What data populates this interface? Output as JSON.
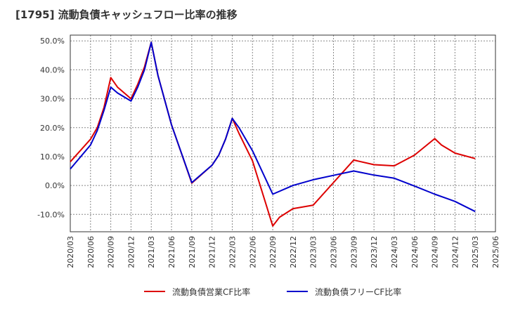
{
  "chart_data": {
    "type": "line",
    "title": "[1795]  流動負債キャッシュフロー比率の推移",
    "x_ticks": [
      "2020/03",
      "2020/06",
      "2020/09",
      "2020/12",
      "2021/03",
      "2021/06",
      "2021/09",
      "2021/12",
      "2022/03",
      "2022/06",
      "2022/09",
      "2022/12",
      "2023/03",
      "2023/06",
      "2023/09",
      "2023/12",
      "2024/03",
      "2024/06",
      "2024/09",
      "2024/12",
      "2025/03",
      "2025/06"
    ],
    "y_ticks": [
      "50.0%",
      "40.0%",
      "30.0%",
      "20.0%",
      "10.0%",
      "0.0%",
      "-10.0%"
    ],
    "ylim": [
      -16,
      52
    ],
    "grid": true,
    "legend_position": "bottom",
    "series": [
      {
        "name": "流動負債営業CF比率",
        "color": "#dd0000",
        "points": [
          [
            "2020/03",
            8.2
          ],
          [
            "2020/06",
            16.0
          ],
          [
            "2020/07",
            20.0
          ],
          [
            "2020/08",
            27.0
          ],
          [
            "2020/09",
            37.3
          ],
          [
            "2020/10",
            34.0
          ],
          [
            "2020/12",
            30.0
          ],
          [
            "2021/01",
            35.0
          ],
          [
            "2021/02",
            41.0
          ],
          [
            "2021/03",
            49.5
          ],
          [
            "2021/04",
            38.0
          ],
          [
            "2021/06",
            21.0
          ],
          [
            "2021/09",
            0.8
          ],
          [
            "2021/12",
            7.0
          ],
          [
            "2022/01",
            10.5
          ],
          [
            "2022/02",
            16.0
          ],
          [
            "2022/03",
            23.2
          ],
          [
            "2022/04",
            18.0
          ],
          [
            "2022/06",
            8.5
          ],
          [
            "2022/09",
            -14.0
          ],
          [
            "2022/10",
            -11.0
          ],
          [
            "2022/12",
            -8.0
          ],
          [
            "2023/03",
            -6.8
          ],
          [
            "2023/06",
            1.0
          ],
          [
            "2023/09",
            8.8
          ],
          [
            "2023/12",
            7.2
          ],
          [
            "2024/03",
            6.8
          ],
          [
            "2024/06",
            10.5
          ],
          [
            "2024/09",
            16.2
          ],
          [
            "2024/10",
            14.0
          ],
          [
            "2024/12",
            11.2
          ],
          [
            "2025/03",
            9.3
          ]
        ]
      },
      {
        "name": "流動負債フリーCF比率",
        "color": "#0000cc",
        "points": [
          [
            "2020/03",
            5.7
          ],
          [
            "2020/06",
            14.0
          ],
          [
            "2020/07",
            19.0
          ],
          [
            "2020/08",
            26.0
          ],
          [
            "2020/09",
            34.0
          ],
          [
            "2020/10",
            32.0
          ],
          [
            "2020/12",
            29.2
          ],
          [
            "2021/01",
            34.0
          ],
          [
            "2021/02",
            40.0
          ],
          [
            "2021/03",
            49.5
          ],
          [
            "2021/04",
            38.0
          ],
          [
            "2021/06",
            21.0
          ],
          [
            "2021/09",
            1.0
          ],
          [
            "2021/12",
            7.0
          ],
          [
            "2022/01",
            10.5
          ],
          [
            "2022/02",
            16.0
          ],
          [
            "2022/03",
            23.2
          ],
          [
            "2022/04",
            20.0
          ],
          [
            "2022/06",
            12.0
          ],
          [
            "2022/09",
            -3.0
          ],
          [
            "2022/12",
            0.0
          ],
          [
            "2023/03",
            2.0
          ],
          [
            "2023/06",
            3.5
          ],
          [
            "2023/09",
            5.0
          ],
          [
            "2023/12",
            3.6
          ],
          [
            "2024/03",
            2.5
          ],
          [
            "2024/06",
            -0.2
          ],
          [
            "2024/09",
            -3.0
          ],
          [
            "2024/12",
            -5.5
          ],
          [
            "2025/03",
            -9.0
          ]
        ]
      }
    ]
  }
}
